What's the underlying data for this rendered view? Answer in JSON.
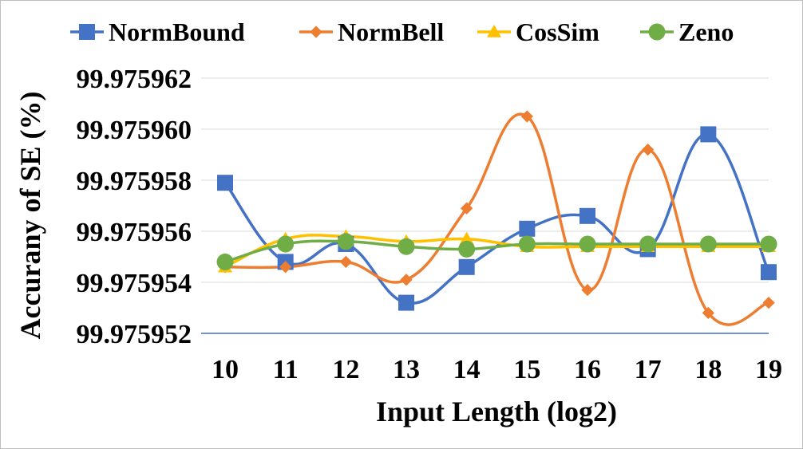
{
  "chart_data": {
    "type": "line",
    "xlabel": "Input Length (log2)",
    "ylabel": "Accurany of SE (%)",
    "x": [
      10,
      11,
      12,
      13,
      14,
      15,
      16,
      17,
      18,
      19
    ],
    "ylim": [
      99.975952,
      99.975962
    ],
    "yticks": [
      "99.975952",
      "99.975954",
      "99.975956",
      "99.975958",
      "99.975960",
      "99.975962"
    ],
    "ytick_values": [
      99.975952,
      99.975954,
      99.975956,
      99.975958,
      99.97596,
      99.975962
    ],
    "grid": true,
    "legend_position": "top",
    "series": [
      {
        "name": "NormBound",
        "color": "#4472C4",
        "marker": "square",
        "values": [
          99.9759579,
          99.9759548,
          99.9759555,
          99.9759532,
          99.9759546,
          99.9759561,
          99.9759566,
          99.9759553,
          99.9759598,
          99.9759544
        ]
      },
      {
        "name": "NormBell",
        "color": "#ED7D31",
        "marker": "diamond",
        "values": [
          99.9759546,
          99.9759546,
          99.9759548,
          99.9759541,
          99.9759569,
          99.9759605,
          99.9759537,
          99.9759592,
          99.9759528,
          99.9759532
        ]
      },
      {
        "name": "CosSim",
        "color": "#FFC000",
        "marker": "triangle",
        "values": [
          99.9759546,
          99.9759557,
          99.9759558,
          99.9759556,
          99.9759557,
          99.9759554,
          99.9759554,
          99.9759554,
          99.9759554,
          99.9759554
        ]
      },
      {
        "name": "Zeno",
        "color": "#70AD47",
        "marker": "circle",
        "values": [
          99.9759548,
          99.9759555,
          99.9759556,
          99.9759554,
          99.9759553,
          99.9759555,
          99.9759555,
          99.9759555,
          99.9759555,
          99.9759555
        ]
      }
    ]
  }
}
